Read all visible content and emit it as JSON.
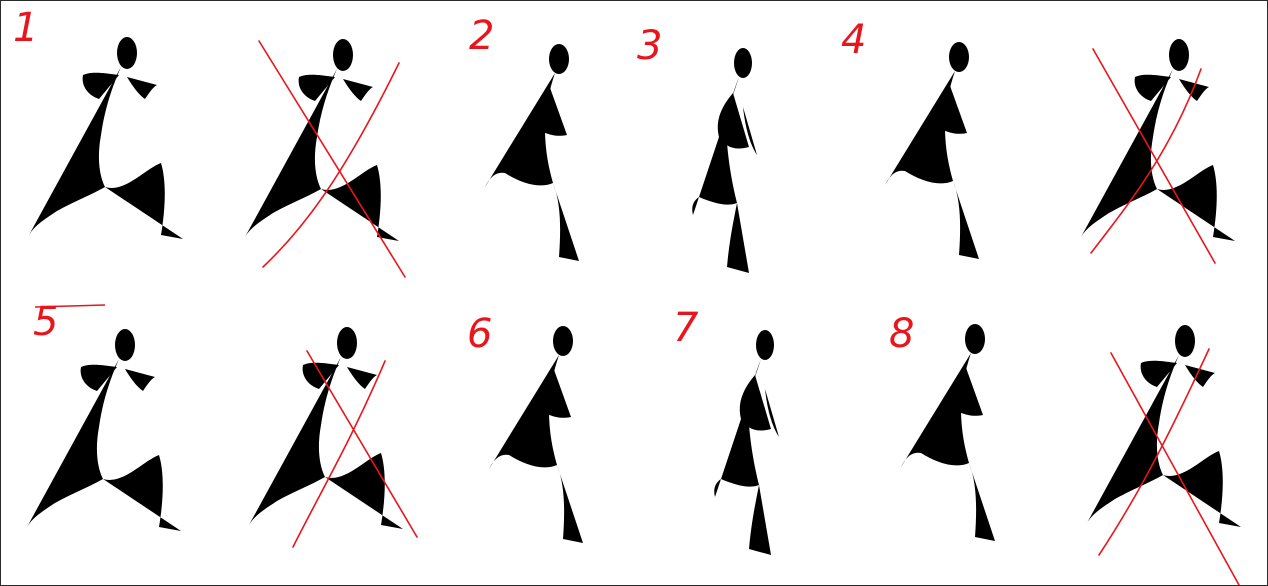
{
  "sheet": {
    "frames": [
      {
        "label": "1",
        "rejected_variant": true
      },
      {
        "label": "2",
        "rejected_variant": false
      },
      {
        "label": "3",
        "rejected_variant": false
      },
      {
        "label": "4",
        "rejected_variant": true
      },
      {
        "label": "5",
        "rejected_variant": true
      },
      {
        "label": "6",
        "rejected_variant": false
      },
      {
        "label": "7",
        "rejected_variant": false
      },
      {
        "label": "8",
        "rejected_variant": true
      }
    ],
    "colors": {
      "ink": "#111111",
      "correction": "#e8161c",
      "paper": "#ffffff",
      "border": "#2a2a2a"
    }
  }
}
